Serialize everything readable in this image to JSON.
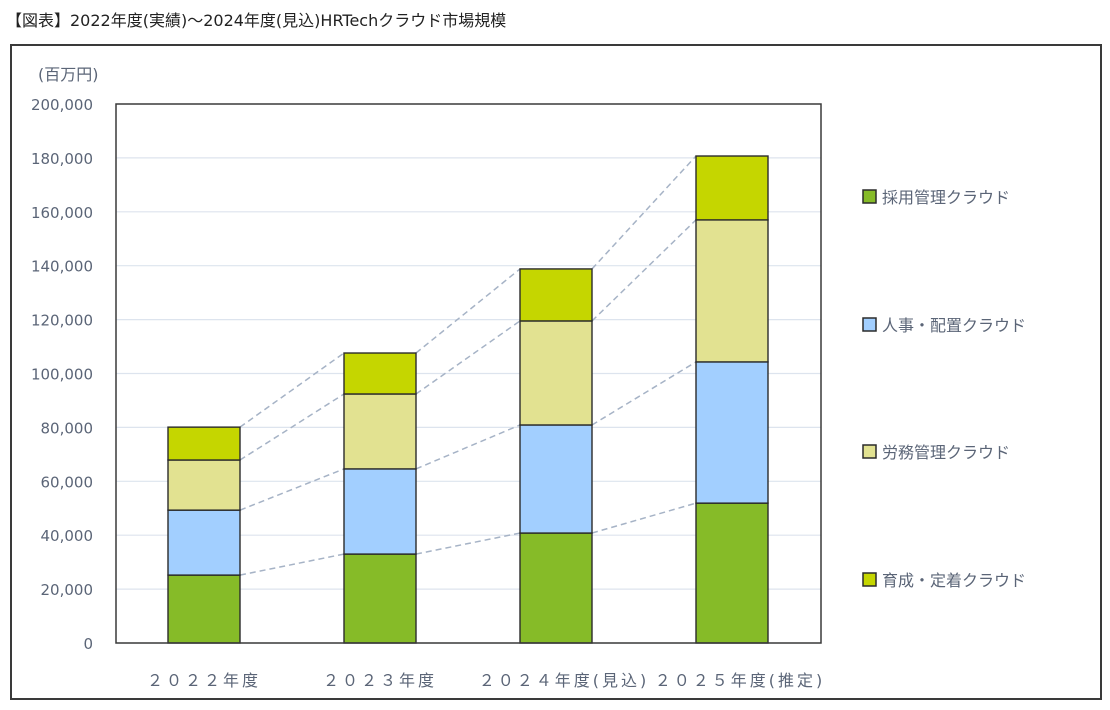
{
  "title": "【図表】2022年度(実績)～2024年度(見込)HRTechクラウド市場規模",
  "chart_data": {
    "type": "bar",
    "stacked": true,
    "title": "【図表】2022年度(実績)～2024年度(見込)HRTechクラウド市場規模",
    "unit_label": "(百万円)",
    "xlabel": "",
    "ylabel": "(百万円)",
    "ylim": [
      0,
      200000
    ],
    "yticks": [
      "0",
      "20,000",
      "40,000",
      "60,000",
      "80,000",
      "100,000",
      "120,000",
      "140,000",
      "160,000",
      "180,000",
      "200,000"
    ],
    "grid": true,
    "legend_position": "right",
    "categories": [
      "２０２２年度",
      "２０２３年度",
      "２０２４年度(見込)",
      "２０２５年度(推定)"
    ],
    "series": [
      {
        "name": "採用管理クラウド",
        "color": "#86bb28",
        "values": [
          25200,
          33000,
          40800,
          51900
        ]
      },
      {
        "name": "人事・配置クラウド",
        "color": "#a2cfff",
        "values": [
          24100,
          31600,
          40100,
          52400
        ]
      },
      {
        "name": "労務管理クラウド",
        "color": "#e2e291",
        "values": [
          18600,
          27800,
          38600,
          52700
        ]
      },
      {
        "name": "育成・定着クラウド",
        "color": "#c5d600",
        "values": [
          12200,
          15200,
          19300,
          23700
        ]
      }
    ],
    "totals": [
      80100,
      107600,
      138800,
      180700
    ],
    "connector_lines": "dashed series connectors between bars"
  },
  "legend": [
    {
      "label": "採用管理クラウド",
      "color": "#86bb28"
    },
    {
      "label": "人事・配置クラウド",
      "color": "#a2cfff"
    },
    {
      "label": "労務管理クラウド",
      "color": "#e2e291"
    },
    {
      "label": "育成・定着クラウド",
      "color": "#c5d600"
    }
  ]
}
